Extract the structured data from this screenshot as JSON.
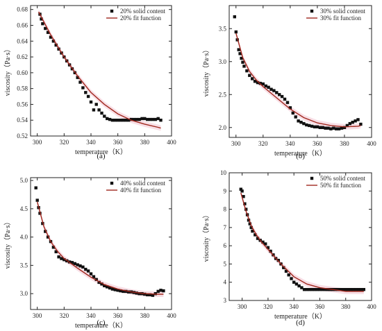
{
  "chart_data": [
    {
      "type": "scatter",
      "panel_label": "(a)",
      "xlabel": "temperature（K）",
      "ylabel": "viscosity（Pa·s）",
      "xlim": [
        295,
        400
      ],
      "ylim": [
        0.52,
        0.685
      ],
      "xticks": [
        "300",
        "320",
        "340",
        "360",
        "380",
        "400"
      ],
      "xtick_values": [
        300,
        320,
        340,
        360,
        380,
        400
      ],
      "yticks": [
        "0.52",
        "0.54",
        "0.56",
        "0.58",
        "0.60",
        "0.62",
        "0.64",
        "0.66",
        "0.68"
      ],
      "ytick_values": [
        0.52,
        0.54,
        0.56,
        0.58,
        0.6,
        0.62,
        0.64,
        0.66,
        0.68
      ],
      "legend_position": "top-right",
      "series": [
        {
          "name": "20% solid content",
          "kind": "points",
          "color": "#111111",
          "x": [
            302,
            303,
            304,
            306,
            308,
            310,
            312,
            314,
            316,
            318,
            320,
            322,
            324,
            326,
            328,
            330,
            332,
            334,
            336,
            338,
            340,
            342,
            344,
            346,
            348,
            350,
            352,
            354,
            356,
            358,
            360,
            362,
            364,
            366,
            368,
            370,
            372,
            374,
            376,
            378,
            380,
            382,
            384,
            386,
            388,
            390,
            392
          ],
          "y": [
            0.674,
            0.668,
            0.662,
            0.656,
            0.651,
            0.645,
            0.64,
            0.635,
            0.63,
            0.625,
            0.62,
            0.615,
            0.61,
            0.605,
            0.6,
            0.594,
            0.588,
            0.581,
            0.575,
            0.57,
            0.563,
            0.553,
            0.56,
            0.553,
            0.549,
            0.545,
            0.542,
            0.541,
            0.54,
            0.54,
            0.54,
            0.54,
            0.54,
            0.54,
            0.54,
            0.541,
            0.541,
            0.541,
            0.541,
            0.542,
            0.542,
            0.541,
            0.541,
            0.541,
            0.541,
            0.542,
            0.54
          ]
        },
        {
          "name": "20% fit function",
          "kind": "line",
          "color": "#a0281e",
          "x": [
            301,
            310,
            320,
            330,
            340,
            350,
            360,
            370,
            380,
            390,
            392
          ],
          "y": [
            0.677,
            0.648,
            0.62,
            0.596,
            0.575,
            0.56,
            0.548,
            0.54,
            0.535,
            0.531,
            0.53
          ]
        }
      ]
    },
    {
      "type": "scatter",
      "panel_label": "(b)",
      "xlabel": "temperature（K）",
      "ylabel": "viscosity（Pa·s）",
      "xlim": [
        295,
        400
      ],
      "ylim": [
        1.85,
        3.85
      ],
      "xticks": [
        "300",
        "320",
        "340",
        "360",
        "380",
        "400"
      ],
      "xtick_values": [
        300,
        320,
        340,
        360,
        380,
        400
      ],
      "yticks": [
        "2.0",
        "2.5",
        "3.0",
        "3.5"
      ],
      "ytick_values": [
        2.0,
        2.5,
        3.0,
        3.5
      ],
      "legend_position": "top-right",
      "series": [
        {
          "name": "30% solid content",
          "kind": "points",
          "color": "#111111",
          "x": [
            299,
            300,
            301,
            302,
            303,
            304,
            305,
            306,
            308,
            310,
            312,
            314,
            316,
            318,
            320,
            322,
            324,
            326,
            328,
            330,
            332,
            334,
            336,
            338,
            340,
            342,
            344,
            346,
            348,
            350,
            352,
            354,
            356,
            358,
            360,
            362,
            364,
            366,
            368,
            370,
            372,
            374,
            376,
            378,
            380,
            382,
            384,
            386,
            388,
            390,
            392
          ],
          "y": [
            3.68,
            3.45,
            3.33,
            3.18,
            3.12,
            3.05,
            2.99,
            2.93,
            2.86,
            2.79,
            2.74,
            2.7,
            2.68,
            2.67,
            2.66,
            2.63,
            2.61,
            2.58,
            2.56,
            2.53,
            2.5,
            2.47,
            2.43,
            2.38,
            2.3,
            2.22,
            2.16,
            2.1,
            2.08,
            2.06,
            2.04,
            2.03,
            2.02,
            2.01,
            2.01,
            2.0,
            2.0,
            1.99,
            1.99,
            1.98,
            1.99,
            1.98,
            1.98,
            1.99,
            2.0,
            2.03,
            2.06,
            2.08,
            2.1,
            2.12,
            2.05
          ]
        },
        {
          "name": "30% fit function",
          "kind": "line",
          "color": "#a0281e",
          "x": [
            300,
            305,
            310,
            315,
            320,
            330,
            340,
            350,
            360,
            370,
            380,
            390,
            392
          ],
          "y": [
            3.43,
            3.06,
            2.85,
            2.72,
            2.62,
            2.45,
            2.28,
            2.15,
            2.07,
            2.03,
            2.01,
            2.02,
            2.03
          ]
        }
      ]
    },
    {
      "type": "scatter",
      "panel_label": "(c)",
      "xlabel": "temperature（K）",
      "ylabel": "viscosity（Pa·s）",
      "xlim": [
        295,
        400
      ],
      "ylim": [
        2.72,
        5.05
      ],
      "xticks": [
        "300",
        "320",
        "340",
        "360",
        "380",
        "400"
      ],
      "xtick_values": [
        300,
        320,
        340,
        360,
        380,
        400
      ],
      "yticks": [
        "3.0",
        "3.5",
        "4.0",
        "4.5",
        "5.0"
      ],
      "ytick_values": [
        3.0,
        3.5,
        4.0,
        4.5,
        5.0
      ],
      "legend_position": "top-right",
      "series": [
        {
          "name": "40% solid content",
          "kind": "points",
          "color": "#111111",
          "x": [
            299,
            300,
            301,
            302,
            304,
            306,
            308,
            310,
            312,
            314,
            316,
            318,
            320,
            322,
            324,
            326,
            328,
            330,
            332,
            334,
            336,
            338,
            340,
            342,
            344,
            346,
            348,
            350,
            352,
            354,
            356,
            358,
            360,
            362,
            364,
            366,
            368,
            370,
            372,
            374,
            376,
            378,
            380,
            382,
            384,
            386,
            388,
            390,
            392,
            394
          ],
          "y": [
            4.87,
            4.65,
            4.52,
            4.42,
            4.24,
            4.1,
            4.0,
            3.92,
            3.82,
            3.74,
            3.65,
            3.62,
            3.6,
            3.58,
            3.56,
            3.55,
            3.53,
            3.51,
            3.49,
            3.47,
            3.43,
            3.4,
            3.35,
            3.3,
            3.25,
            3.2,
            3.17,
            3.14,
            3.12,
            3.1,
            3.08,
            3.07,
            3.06,
            3.05,
            3.04,
            3.04,
            3.03,
            3.03,
            3.02,
            3.01,
            3.0,
            3.0,
            2.99,
            2.98,
            2.98,
            2.97,
            3.0,
            3.04,
            3.06,
            3.05
          ]
        },
        {
          "name": "40% fit function",
          "kind": "line",
          "color": "#a0281e",
          "x": [
            300,
            305,
            310,
            315,
            320,
            330,
            340,
            350,
            360,
            370,
            380,
            390,
            394
          ],
          "y": [
            4.62,
            4.18,
            3.92,
            3.75,
            3.62,
            3.45,
            3.29,
            3.16,
            3.08,
            3.03,
            3.0,
            2.99,
            2.99
          ]
        }
      ]
    },
    {
      "type": "scatter",
      "panel_label": "(d)",
      "xlabel": "temperature（K）",
      "ylabel": "viscosity（Pa·s）",
      "xlim": [
        290,
        400
      ],
      "ylim": [
        3,
        10
      ],
      "xticks": [
        "300",
        "320",
        "340",
        "360",
        "380",
        "400"
      ],
      "xtick_values": [
        300,
        320,
        340,
        360,
        380,
        400
      ],
      "yticks": [
        "3",
        "4",
        "5",
        "6",
        "7",
        "8",
        "9",
        "10"
      ],
      "ytick_values": [
        3,
        4,
        5,
        6,
        7,
        8,
        9,
        10
      ],
      "legend_position": "top-right",
      "series": [
        {
          "name": "50% solid content",
          "kind": "points",
          "color": "#111111",
          "x": [
            299,
            300,
            301,
            302,
            303,
            304,
            305,
            306,
            307,
            308,
            310,
            312,
            314,
            316,
            318,
            320,
            322,
            324,
            326,
            328,
            330,
            332,
            334,
            336,
            338,
            340,
            342,
            344,
            346,
            348,
            350,
            352,
            354,
            356,
            358,
            360,
            362,
            364,
            366,
            368,
            370,
            372,
            374,
            376,
            378,
            380,
            382,
            384,
            386,
            388,
            390,
            392,
            394
          ],
          "y": [
            9.1,
            9.0,
            8.7,
            8.3,
            8.0,
            7.7,
            7.4,
            7.2,
            7.0,
            6.8,
            6.6,
            6.4,
            6.3,
            6.2,
            6.1,
            5.9,
            5.7,
            5.5,
            5.3,
            5.2,
            5.0,
            4.8,
            4.6,
            4.4,
            4.2,
            4.0,
            3.9,
            3.8,
            3.7,
            3.6,
            3.6,
            3.6,
            3.6,
            3.6,
            3.6,
            3.6,
            3.6,
            3.6,
            3.6,
            3.6,
            3.6,
            3.6,
            3.6,
            3.6,
            3.6,
            3.6,
            3.6,
            3.6,
            3.6,
            3.6,
            3.6,
            3.6,
            3.6
          ]
        },
        {
          "name": "50% fit function",
          "kind": "line",
          "color": "#a0281e",
          "x": [
            299,
            303,
            307,
            311,
            315,
            320,
            330,
            340,
            350,
            360,
            370,
            380,
            390,
            394
          ],
          "y": [
            8.9,
            7.9,
            7.1,
            6.6,
            6.2,
            5.8,
            5.0,
            4.3,
            3.9,
            3.7,
            3.6,
            3.5,
            3.5,
            3.5
          ]
        }
      ]
    }
  ]
}
